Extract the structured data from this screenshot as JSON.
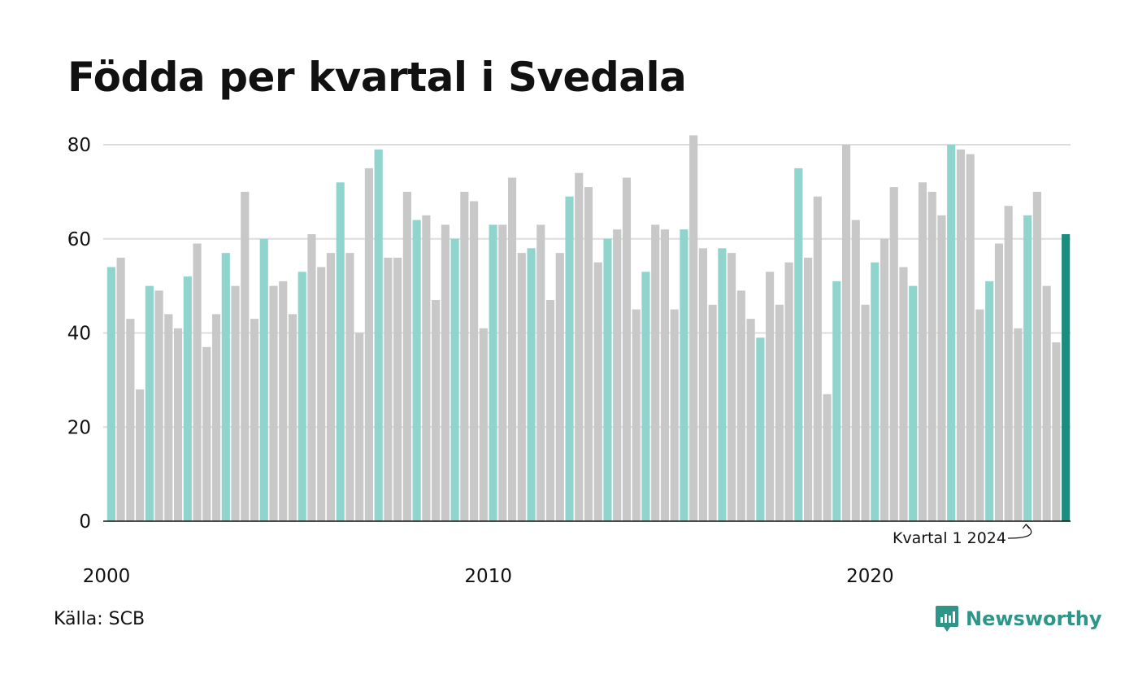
{
  "title": "Födda per kvartal i Svedala",
  "source": "Källa: SCB",
  "brand": {
    "name": "Newsworthy",
    "logo_icon": "newsworthy-chart-bubble-icon"
  },
  "colors": {
    "q1": "#8fd5cd",
    "other": "#c8c8c8",
    "latest": "#1b8c80",
    "brand": "#2e9589"
  },
  "chart_data": {
    "type": "bar",
    "title": "Födda per kvartal i Svedala",
    "xlabel": "",
    "ylabel": "",
    "ylim": [
      0,
      85
    ],
    "yticks": [
      0,
      20,
      40,
      60,
      80
    ],
    "xticks": [
      "2000",
      "2010",
      "2020"
    ],
    "grid": true,
    "start": "2000 Q1",
    "end": "2024 Q1",
    "values": [
      54,
      56,
      43,
      28,
      50,
      49,
      44,
      41,
      52,
      59,
      37,
      44,
      57,
      50,
      70,
      43,
      60,
      50,
      51,
      44,
      53,
      61,
      54,
      57,
      72,
      57,
      40,
      75,
      79,
      56,
      56,
      70,
      64,
      65,
      47,
      63,
      60,
      70,
      68,
      41,
      63,
      63,
      73,
      57,
      58,
      63,
      47,
      57,
      69,
      74,
      71,
      55,
      60,
      62,
      73,
      45,
      53,
      63,
      62,
      45,
      62,
      82,
      58,
      46,
      58,
      57,
      49,
      43,
      39,
      53,
      46,
      55,
      75,
      56,
      69,
      27,
      51,
      80,
      64,
      46,
      55,
      60,
      71,
      54,
      50,
      72,
      70,
      65,
      80,
      79,
      78,
      45,
      51,
      59,
      67,
      41,
      65,
      70,
      50,
      38,
      61
    ],
    "annotation": {
      "label": "Kvartal 1 2024"
    }
  }
}
